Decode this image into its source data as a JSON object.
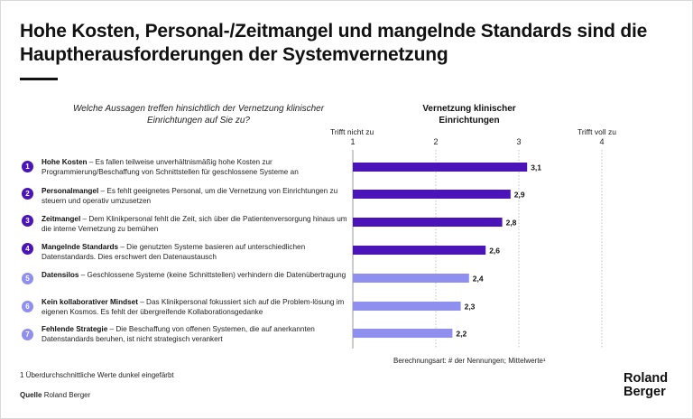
{
  "title": "Hohe Kosten, Personal-/Zeitmangel und mangelnde Standards sind die Hauptherausforderungen der Systemvernetzung",
  "question": "Welche Aussagen treffen hinsichtlich der Vernetzung klinischer Einrichtungen auf Sie zu?",
  "column_title": "Vernetzung klinischer Einrichtungen",
  "scale": {
    "low_label": "Trifft nicht zu",
    "high_label": "Trifft voll zu"
  },
  "statements": [
    {
      "number": "1",
      "bold": "Hohe Kosten",
      "text": " – Es fallen teilweise unverhältnismäßig hohe Kosten zur Programmierung/Beschaffung von Schnittstellen für geschlossene Systeme an"
    },
    {
      "number": "2",
      "bold": "Personalmangel",
      "text": " – Es fehlt geeignetes Personal, um die Vernetzung von Einrichtungen zu steuern und operativ umzusetzen"
    },
    {
      "number": "3",
      "bold": "Zeitmangel",
      "text": " – Dem Klinikpersonal fehlt die Zeit, sich über die Patientenversorgung hinaus um die interne Vernetzung zu bemühen"
    },
    {
      "number": "4",
      "bold": "Mangelnde Standards",
      "text": " – Die genutzten Systeme basieren auf unterschiedlichen Datenstandards. Dies erschwert den Datenaustausch"
    },
    {
      "number": "5",
      "bold": "Datensilos",
      "text": " – Geschlossene Systeme (keine Schnittstellen) verhindern die Datenübertragung"
    },
    {
      "number": "6",
      "bold": "Kein kollaborativer Mindset",
      "text": " – Das Klinikpersonal fokussiert sich auf die Problem-lösung im eigenen Kosmos. Es fehlt der übergreifende Kollaborationsgedanke"
    },
    {
      "number": "7",
      "bold": "Fehlende Strategie",
      "text": " – Die Beschaffung von offenen Systemen, die auf anerkannten Datenstandards beruhen, ist nicht strategisch verankert"
    }
  ],
  "colors": {
    "dark": "#4a14b8",
    "light": "#8f8ff0",
    "axis": "#999999"
  },
  "chart_data": {
    "type": "bar",
    "orientation": "horizontal",
    "categories": [
      "Hohe Kosten",
      "Personalmangel",
      "Zeitmangel",
      "Mangelnde Standards",
      "Datensilos",
      "Kein kollaborativer Mindset",
      "Fehlende Strategie"
    ],
    "values": [
      3.1,
      2.9,
      2.8,
      2.6,
      2.4,
      2.3,
      2.2
    ],
    "value_labels": [
      "3,1",
      "2,9",
      "2,8",
      "2,6",
      "2,4",
      "2,3",
      "2,2"
    ],
    "highlight": [
      true,
      true,
      true,
      true,
      false,
      false,
      false
    ],
    "xlim": [
      1,
      4
    ],
    "ticks": [
      "1",
      "2",
      "3",
      "4"
    ],
    "title": "Vernetzung klinischer Einrichtungen"
  },
  "method_note": "Berechnungsart: # der Nennungen; Mittelwerte¹",
  "footnote": "1 Überdurchschnittliche Werte dunkel eingefärbt",
  "source": {
    "label": "Quelle",
    "text": "Roland Berger"
  },
  "logo": {
    "line1": "Roland",
    "line2": "Berger"
  }
}
